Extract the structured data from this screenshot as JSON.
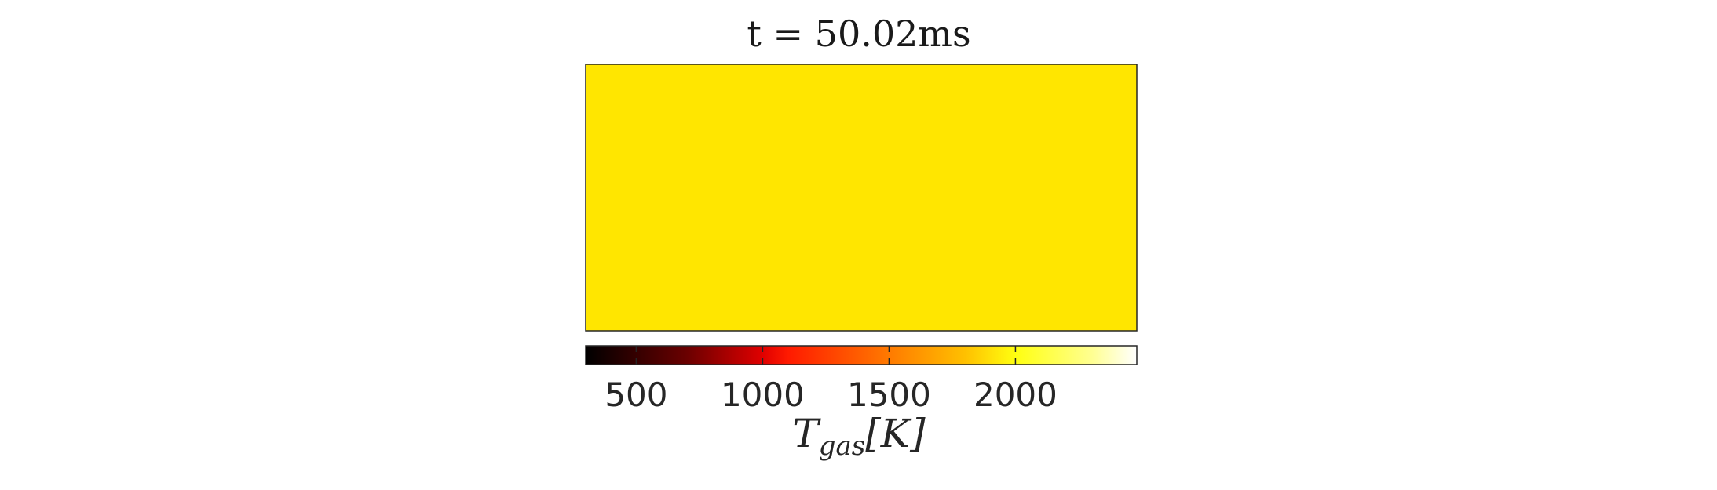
{
  "chart_data": {
    "type": "heatmap",
    "title": "t = 50.02ms",
    "field_value_K": 2000,
    "field_color": "#ffe600",
    "colormap": "hot",
    "colorbar": {
      "label_main": "T",
      "label_sub": "gas",
      "label_unit": "[K]",
      "range": [
        300,
        2480
      ],
      "ticks": [
        500,
        1000,
        1500,
        2000
      ],
      "tick_labels": [
        "500",
        "1000",
        "1500",
        "2000"
      ],
      "orientation": "horizontal",
      "placement": "bottom"
    },
    "colorbar_stops": [
      {
        "value": 300,
        "color": "#000000"
      },
      {
        "value": 700,
        "color": "#6a0000"
      },
      {
        "value": 1000,
        "color": "#e00000"
      },
      {
        "value": 1100,
        "color": "#ff1a00"
      },
      {
        "value": 1500,
        "color": "#ff7a00"
      },
      {
        "value": 1800,
        "color": "#ffc000"
      },
      {
        "value": 2000,
        "color": "#ffff10"
      },
      {
        "value": 2300,
        "color": "#ffff90"
      },
      {
        "value": 2480,
        "color": "#ffffff"
      }
    ]
  }
}
